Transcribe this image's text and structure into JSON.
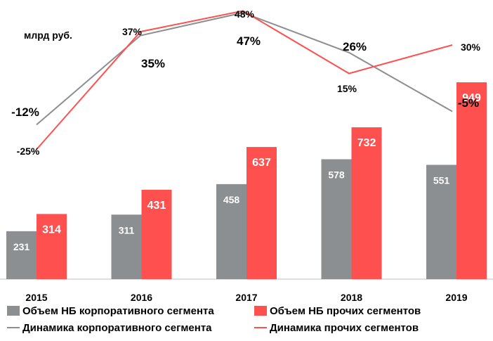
{
  "unit_label": "млрд руб.",
  "chart_data": {
    "type": "bar",
    "categories": [
      "2015",
      "2016",
      "2017",
      "2018",
      "2019"
    ],
    "series": [
      {
        "name": "Объем НБ корпоративного сегмента",
        "type": "bar",
        "color": "#8c8f91",
        "values": [
          231,
          311,
          458,
          578,
          551
        ],
        "value_labels": [
          "231",
          "311",
          "458",
          "578",
          "551"
        ]
      },
      {
        "name": "Объем НБ прочих сегментов",
        "type": "bar",
        "color": "#ff5050",
        "values": [
          314,
          431,
          637,
          732,
          949
        ],
        "value_labels": [
          "314",
          "431",
          "637",
          "732",
          "949"
        ]
      },
      {
        "name": "Динамика корпоративного сегмента",
        "type": "line",
        "color": "#8c8f91",
        "values": [
          -12,
          35,
          47,
          26,
          -5
        ],
        "value_labels": [
          "-12%",
          "35%",
          "47%",
          "26%",
          "-5%"
        ]
      },
      {
        "name": "Динамика прочих сегментов",
        "type": "line",
        "color": "#ff5050",
        "values": [
          -25,
          37,
          48,
          15,
          30
        ],
        "value_labels": [
          "-25%",
          "37%",
          "48%",
          "15%",
          "30%"
        ]
      }
    ],
    "bar_axis_range": [
      0,
      1000
    ],
    "line_axis_range": [
      -50,
      50
    ],
    "grid": false,
    "legend_position": "bottom"
  }
}
